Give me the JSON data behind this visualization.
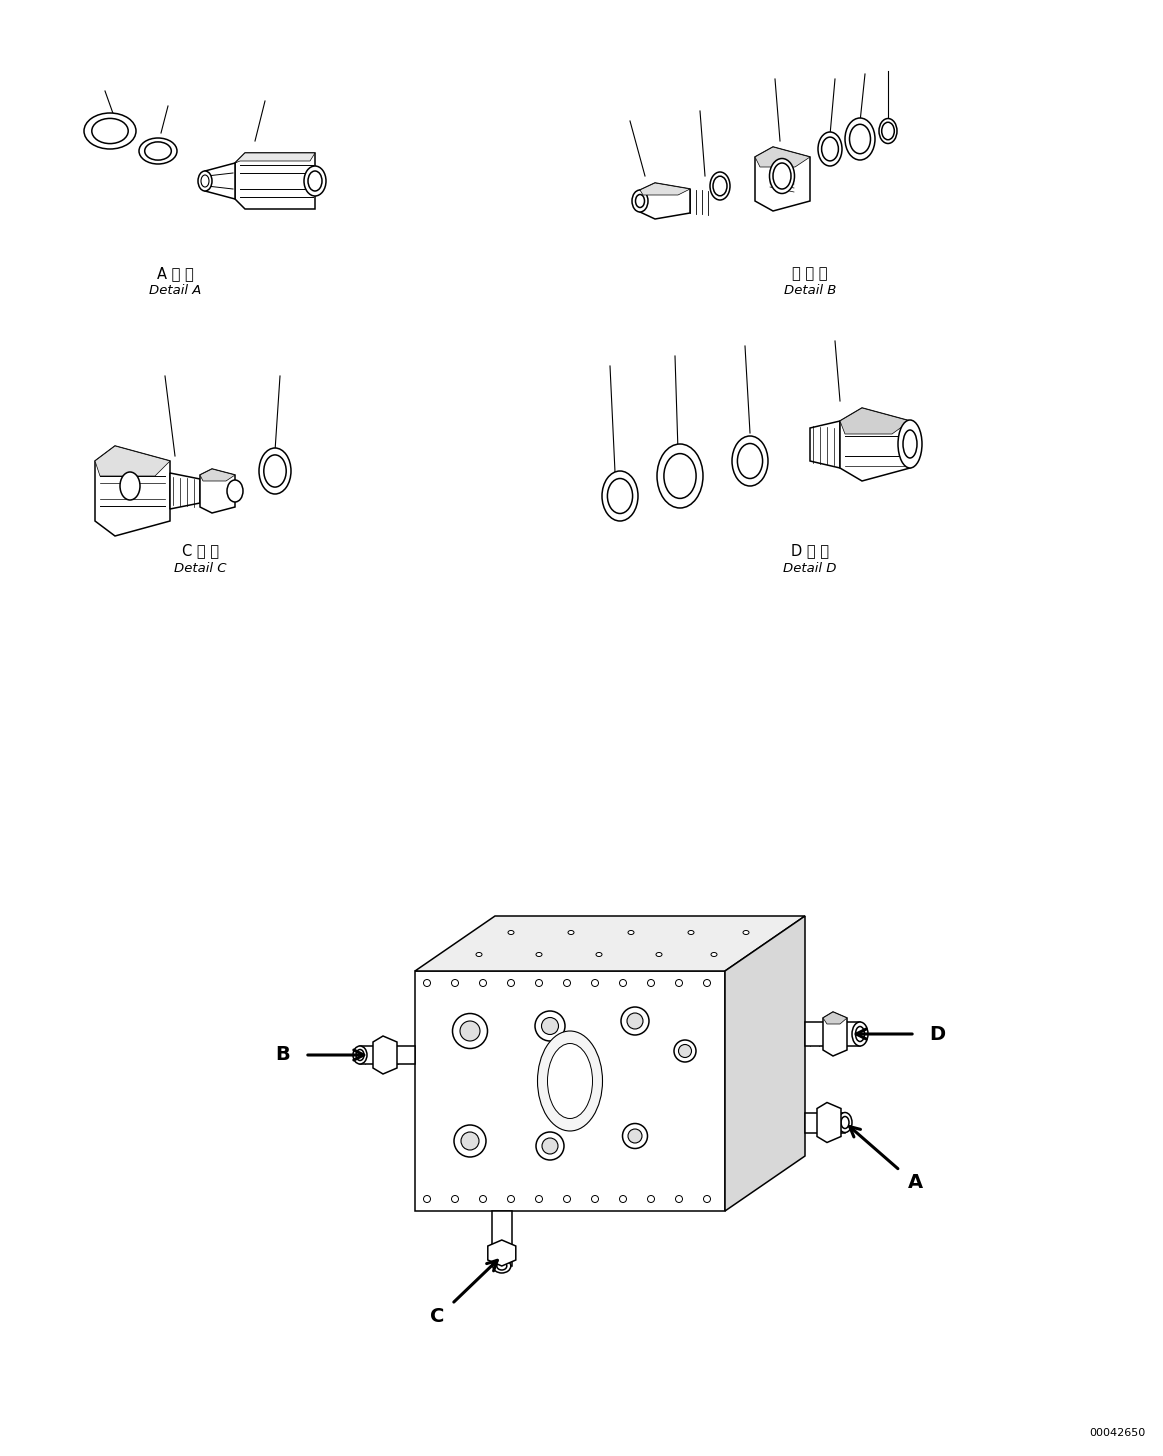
{
  "bg_color": "#ffffff",
  "fig_width": 11.63,
  "fig_height": 14.56,
  "dpi": 100,
  "watermark": "00042650",
  "label_A_kanji": "A 詳 細",
  "label_A_latin": "Detail A",
  "label_B_kanji": "日 詳 細",
  "label_B_latin": "Detail B",
  "label_C_kanji": "C 詳 細",
  "label_C_latin": "Detail C",
  "label_D_kanji": "D 詳 細",
  "label_D_latin": "Detail D"
}
